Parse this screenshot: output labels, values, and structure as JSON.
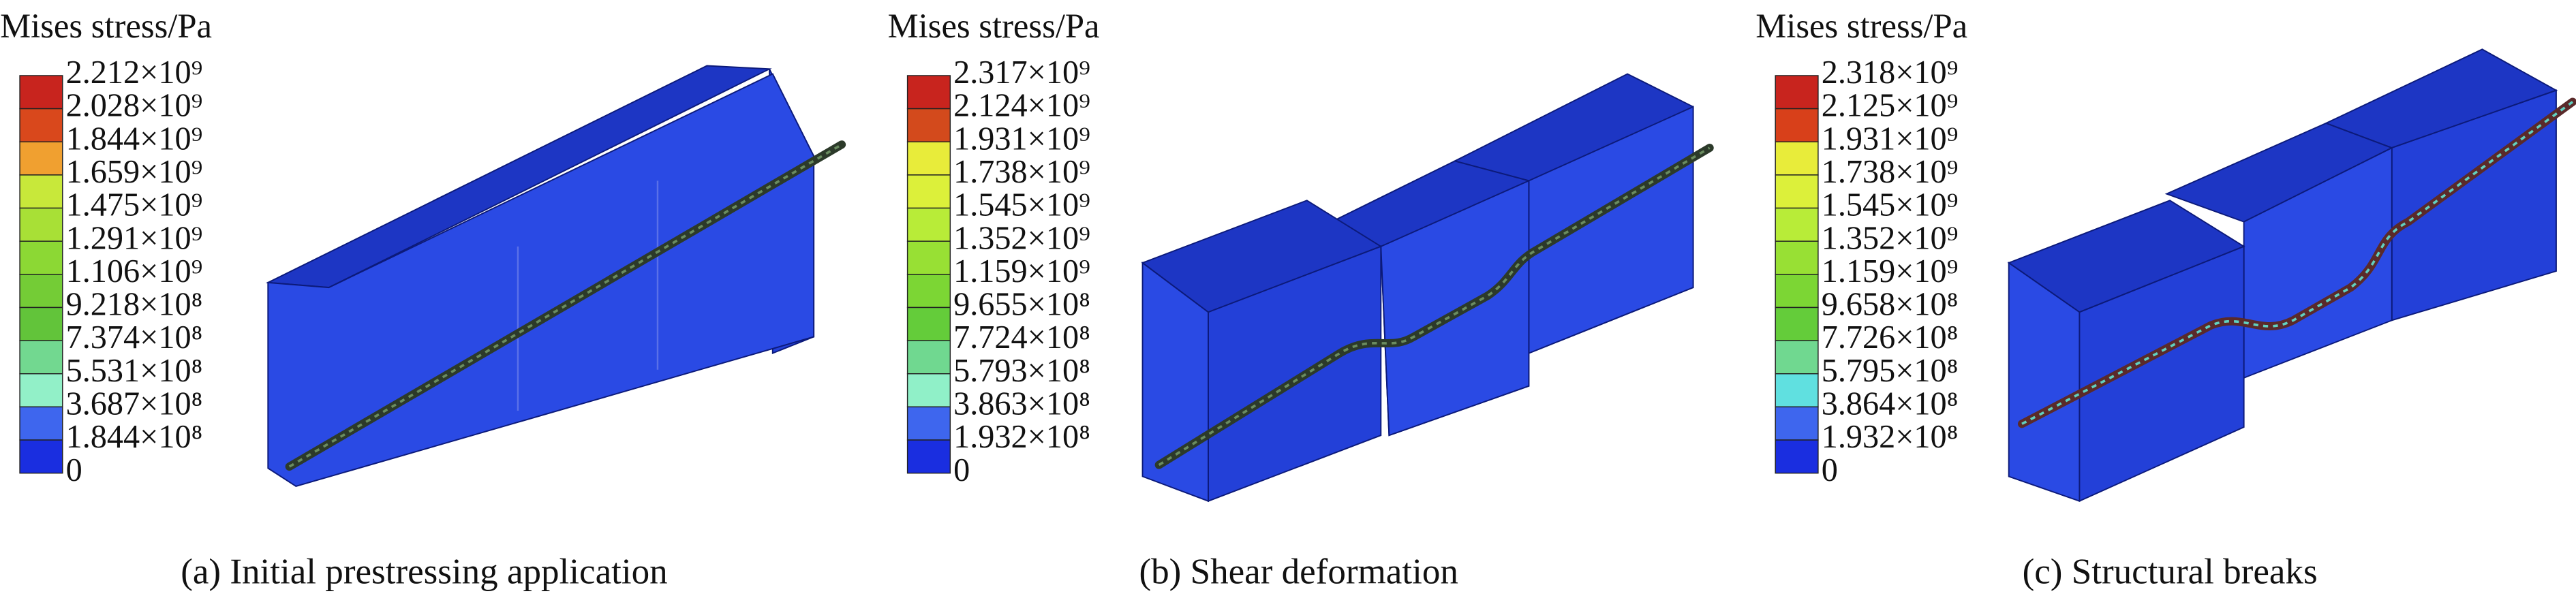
{
  "panels": [
    {
      "legend_title": "Mises stress/Pa",
      "legend_labels": [
        "2.212×10⁹",
        "2.028×10⁹",
        "1.844×10⁹",
        "1.659×10⁹",
        "1.475×10⁹",
        "1.291×10⁹",
        "1.106×10⁹",
        "9.218×10⁸",
        "7.374×10⁸",
        "5.531×10⁸",
        "3.687×10⁸",
        "1.844×10⁸",
        "0"
      ],
      "caption": "(a) Initial prestressing application"
    },
    {
      "legend_title": "Mises stress/Pa",
      "legend_labels": [
        "2.317×10⁹",
        "2.124×10⁹",
        "1.931×10⁹",
        "1.738×10⁹",
        "1.545×10⁹",
        "1.352×10⁹",
        "1.159×10⁹",
        "9.655×10⁸",
        "7.724×10⁸",
        "5.793×10⁸",
        "3.863×10⁸",
        "1.932×10⁸",
        "0"
      ],
      "caption": "(b) Shear deformation"
    },
    {
      "legend_title": "Mises stress/Pa",
      "legend_labels": [
        "2.318×10⁹",
        "2.125×10⁹",
        "1.931×10⁹",
        "1.738×10⁹",
        "1.545×10⁹",
        "1.352×10⁹",
        "1.159×10⁹",
        "9.658×10⁸",
        "7.726×10⁸",
        "5.795×10⁸",
        "3.864×10⁸",
        "1.932×10⁸",
        "0"
      ],
      "caption": "(c) Structural breaks"
    }
  ]
}
